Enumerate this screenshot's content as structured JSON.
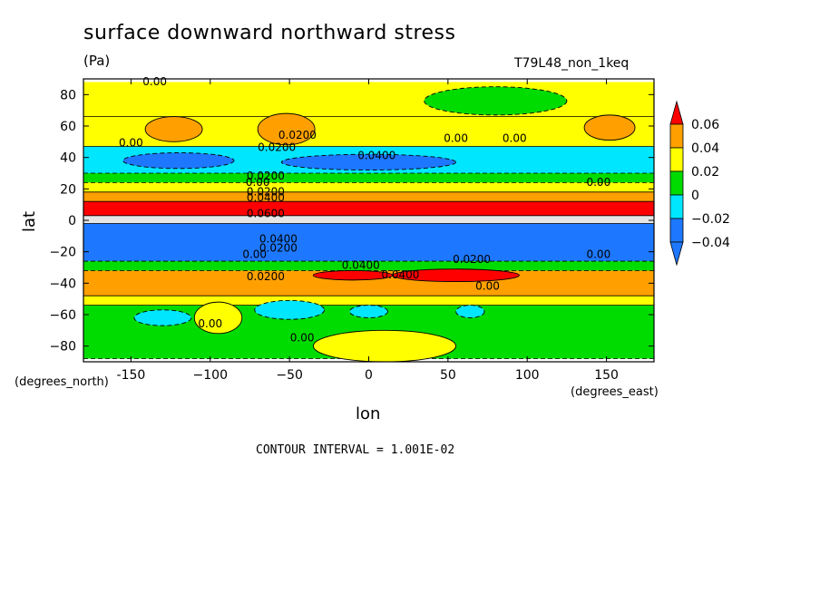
{
  "chart_data": {
    "type": "heatmap",
    "title": "surface downward northward stress",
    "units": "(Pa)",
    "model_label": "T79L48_non_1keq",
    "xlabel": "lon",
    "ylabel": "lat",
    "x_unit_label": "(degrees_east)",
    "y_unit_label": "(degrees_north)",
    "xlim": [
      -180,
      180
    ],
    "ylim": [
      -90,
      90
    ],
    "x_ticks": [
      -150,
      -100,
      -50,
      0,
      50,
      100,
      150
    ],
    "x_tick_labels": [
      "-150",
      "−100",
      "−50",
      "0",
      "50",
      "100",
      "150"
    ],
    "y_ticks": [
      -80,
      -60,
      -40,
      -20,
      0,
      20,
      40,
      60,
      80
    ],
    "y_tick_labels": [
      "−80",
      "−60",
      "−40",
      "−20",
      "0",
      "20",
      "40",
      "60",
      "80"
    ],
    "colorbar": {
      "levels": [
        -0.04,
        -0.02,
        0,
        0.02,
        0.04,
        0.06
      ],
      "labels": [
        "−0.04",
        "−0.02",
        "0",
        "0.02",
        "0.04",
        "0.06"
      ],
      "colors": [
        "#1e78ff",
        "#00e6ff",
        "#00dc00",
        "#ffff00",
        "#ffa000",
        "#ff0000",
        "#e6e6e6"
      ],
      "band_names": [
        "below -0.04",
        "-0.04 to -0.02",
        "-0.02 to 0",
        "0 to 0.02",
        "0.02 to 0.04",
        "0.04 to 0.06",
        "above 0.06"
      ]
    },
    "zonal_bands": [
      {
        "lat_min": 66,
        "lat_max": 88,
        "value": 0.01
      },
      {
        "lat_min": 47,
        "lat_max": 66,
        "value": 0.005
      },
      {
        "lat_min": 30,
        "lat_max": 47,
        "value": -0.03
      },
      {
        "lat_min": 24,
        "lat_max": 30,
        "value": -0.01
      },
      {
        "lat_min": 18,
        "lat_max": 24,
        "value": 0.01
      },
      {
        "lat_min": 12,
        "lat_max": 18,
        "value": 0.03
      },
      {
        "lat_min": 3,
        "lat_max": 12,
        "value": 0.05
      },
      {
        "lat_min": -2,
        "lat_max": 3,
        "value": 0.07
      },
      {
        "lat_min": -26,
        "lat_max": -2,
        "value": -0.05
      },
      {
        "lat_min": -32,
        "lat_max": -26,
        "value": -0.01
      },
      {
        "lat_min": -48,
        "lat_max": -32,
        "value": 0.03
      },
      {
        "lat_min": -54,
        "lat_max": -48,
        "value": 0.005
      },
      {
        "lat_min": -88,
        "lat_max": -54,
        "value": -0.01
      }
    ],
    "features": [
      {
        "lon": -123,
        "lat": 58,
        "rlon": 18,
        "rlat": 8,
        "value": 0.03
      },
      {
        "lon": -52,
        "lat": 58,
        "rlon": 18,
        "rlat": 10,
        "value": 0.03
      },
      {
        "lon": 152,
        "lat": 59,
        "rlon": 16,
        "rlat": 8,
        "value": 0.03
      },
      {
        "lon": 80,
        "lat": 76,
        "rlon": 45,
        "rlat": 9,
        "value": -0.01
      },
      {
        "lon": -120,
        "lat": 38,
        "rlon": 35,
        "rlat": 5,
        "value": -0.05
      },
      {
        "lon": 0,
        "lat": 37,
        "rlon": 55,
        "rlat": 5,
        "value": -0.05
      },
      {
        "lon": -10,
        "lat": -35,
        "rlon": 25,
        "rlat": 3,
        "value": 0.05
      },
      {
        "lon": 55,
        "lat": -35,
        "rlon": 40,
        "rlat": 4,
        "value": 0.05
      },
      {
        "lon": -50,
        "lat": -57,
        "rlon": 22,
        "rlat": 6,
        "value": -0.03
      },
      {
        "lon": -130,
        "lat": -62,
        "rlon": 18,
        "rlat": 5,
        "value": -0.03
      },
      {
        "lon": 0,
        "lat": -58,
        "rlon": 12,
        "rlat": 4,
        "value": -0.03
      },
      {
        "lon": 64,
        "lat": -58,
        "rlon": 9,
        "rlat": 4,
        "value": -0.03
      },
      {
        "lon": -95,
        "lat": -62,
        "rlon": 15,
        "rlat": 10,
        "value": 0.005
      },
      {
        "lon": 10,
        "lat": -80,
        "rlon": 45,
        "rlat": 10,
        "value": 0.005
      }
    ],
    "contour_labels": [
      {
        "lon": -135,
        "lat": 86,
        "text": "0.00"
      },
      {
        "lon": -150,
        "lat": 47,
        "text": "0.00"
      },
      {
        "lon": -45,
        "lat": 52,
        "text": "0.0200"
      },
      {
        "lon": -58,
        "lat": 44,
        "text": "0.0200"
      },
      {
        "lon": 5,
        "lat": 39,
        "text": "0.0400"
      },
      {
        "lon": 55,
        "lat": 50,
        "text": "0.00"
      },
      {
        "lon": 92,
        "lat": 50,
        "text": "0.00"
      },
      {
        "lon": -65,
        "lat": 26,
        "text": "0.0200"
      },
      {
        "lon": -70,
        "lat": 22,
        "text": "0.00"
      },
      {
        "lon": -65,
        "lat": 16,
        "text": "0.0200"
      },
      {
        "lon": -65,
        "lat": 12,
        "text": "0.0400"
      },
      {
        "lon": -65,
        "lat": 2,
        "text": "0.0600"
      },
      {
        "lon": 145,
        "lat": 22,
        "text": "0.00"
      },
      {
        "lon": -57,
        "lat": -14,
        "text": "0.0400"
      },
      {
        "lon": -57,
        "lat": -20,
        "text": "0.0200"
      },
      {
        "lon": -72,
        "lat": -24,
        "text": "0.00"
      },
      {
        "lon": -5,
        "lat": -31,
        "text": "0.0400"
      },
      {
        "lon": 20,
        "lat": -37,
        "text": "0.0400"
      },
      {
        "lon": 65,
        "lat": -27,
        "text": "0.0200"
      },
      {
        "lon": 145,
        "lat": -24,
        "text": "0.00"
      },
      {
        "lon": -65,
        "lat": -38,
        "text": "0.0200"
      },
      {
        "lon": 75,
        "lat": -44,
        "text": "0.00"
      },
      {
        "lon": -100,
        "lat": -68,
        "text": "0.00"
      },
      {
        "lon": -42,
        "lat": -77,
        "text": "0.00"
      }
    ],
    "contour_interval_text": "CONTOUR INTERVAL = 1.001E-02",
    "grid": false,
    "legend": "right"
  }
}
